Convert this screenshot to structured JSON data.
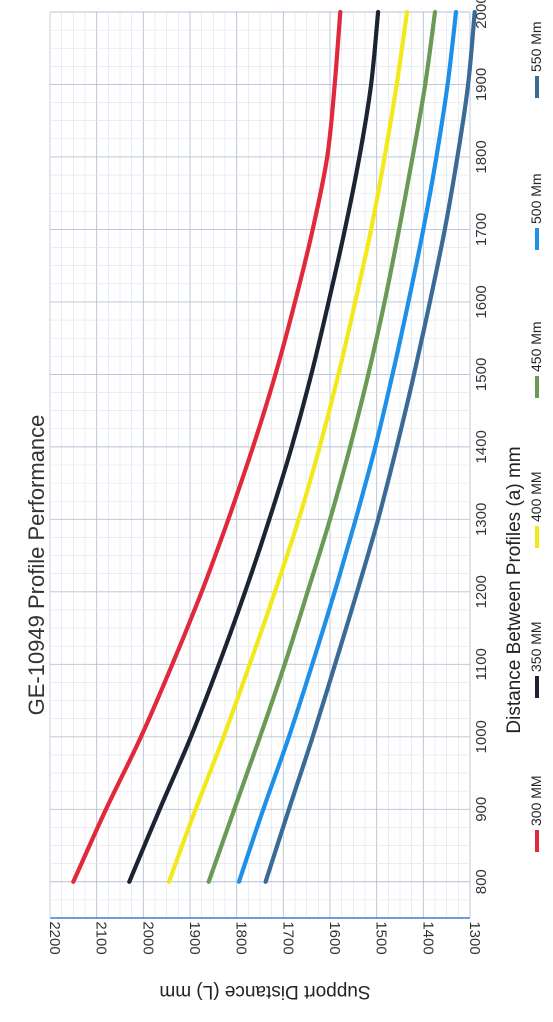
{
  "chart_data": {
    "type": "line",
    "title": "GE-10949 Profile Performance",
    "xlabel": "Distance Between Profiles (a) mm",
    "ylabel": "Support Distance (L) mm",
    "xlim": [
      750,
      2000
    ],
    "ylim": [
      1300,
      2200
    ],
    "xticks": [
      "800",
      "900",
      "1000",
      "1100",
      "1200",
      "1300",
      "1400",
      "1500",
      "1600",
      "1700",
      "1800",
      "1900",
      "2000"
    ],
    "yticks": [
      "1300",
      "1400",
      "1500",
      "1600",
      "1700",
      "1800",
      "1900",
      "2000",
      "2100",
      "2200"
    ],
    "grid": true,
    "legend_position": "bottom",
    "x": [
      800,
      900,
      1000,
      1100,
      1200,
      1300,
      1400,
      1500,
      1600,
      1700,
      1800,
      1900,
      2000
    ],
    "series": [
      {
        "name": "300 MM",
        "color": "#e0293a",
        "values": [
          2150,
          2080,
          2005,
          1938,
          1875,
          1818,
          1765,
          1717,
          1675,
          1637,
          1606,
          1590,
          1578
        ]
      },
      {
        "name": "350 MM",
        "color": "#1c2433",
        "values": [
          2030,
          1965,
          1898,
          1838,
          1782,
          1730,
          1682,
          1640,
          1603,
          1568,
          1537,
          1512,
          1497
        ]
      },
      {
        "name": "400 MM",
        "color": "#f2e81a",
        "values": [
          1945,
          1888,
          1828,
          1772,
          1718,
          1667,
          1622,
          1582,
          1546,
          1512,
          1483,
          1457,
          1435
        ]
      },
      {
        "name": "450 Mm",
        "color": "#6a9a55",
        "values": [
          1860,
          1805,
          1750,
          1697,
          1648,
          1600,
          1557,
          1518,
          1483,
          1452,
          1423,
          1396,
          1375
        ]
      },
      {
        "name": "500 Mm",
        "color": "#1e90e8",
        "values": [
          1795,
          1743,
          1688,
          1638,
          1590,
          1545,
          1503,
          1466,
          1432,
          1400,
          1372,
          1348,
          1330
        ]
      },
      {
        "name": "550 Mm",
        "color": "#3a6a96",
        "values": [
          1738,
          1688,
          1637,
          1589,
          1542,
          1497,
          1457,
          1420,
          1386,
          1354,
          1327,
          1304,
          1290
        ]
      }
    ]
  }
}
